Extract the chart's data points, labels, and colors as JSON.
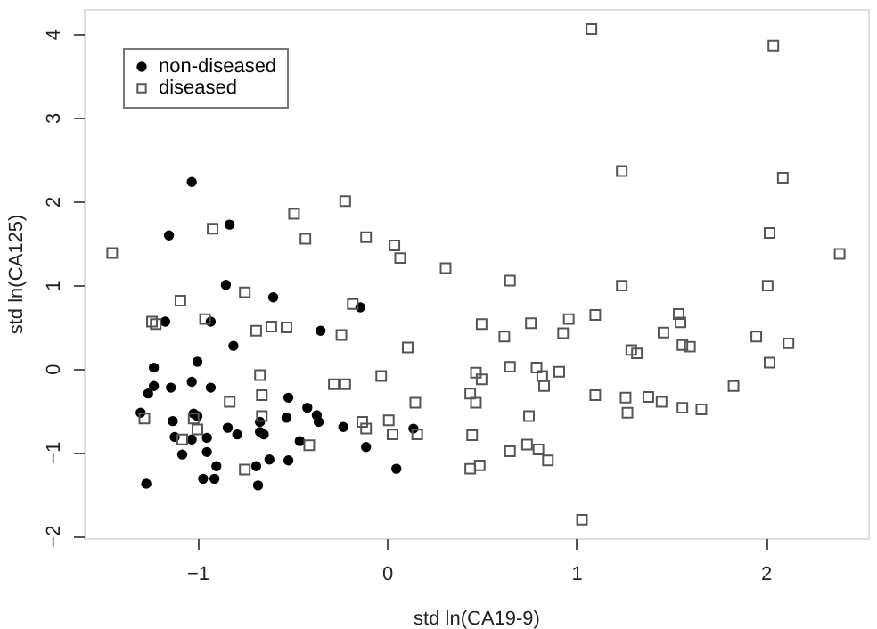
{
  "chart_data": {
    "type": "scatter",
    "xlabel": "std ln(CA19-9)",
    "ylabel": "std ln(CA125)",
    "xlim": [
      -1.6,
      2.54
    ],
    "ylim": [
      -2.03,
      4.3
    ],
    "xticks": [
      -1,
      0,
      1,
      2
    ],
    "yticks": [
      -2,
      -1,
      0,
      1,
      2,
      3,
      4
    ],
    "grid": false,
    "legend": "top left",
    "series": [
      {
        "name": "non-diseased",
        "color": "#000000",
        "marker": "circle",
        "x": [
          -1.03,
          -0.83,
          -1.15,
          -0.85,
          -0.6,
          -0.14,
          -1.17,
          -0.93,
          -0.35,
          -0.81,
          -1.23,
          -1.0,
          -1.23,
          -1.26,
          -1.14,
          -1.03,
          -0.93,
          -0.52,
          -0.42,
          -1.3,
          -1.02,
          -1.0,
          -1.13,
          -0.37,
          -0.36,
          -0.53,
          -0.67,
          -0.84,
          -0.79,
          -0.67,
          -0.65,
          -0.23,
          -1.12,
          -1.03,
          -0.95,
          -0.46,
          -0.11,
          -1.08,
          -0.95,
          -0.62,
          -0.52,
          -0.9,
          -0.69,
          -0.97,
          -0.91,
          -1.27,
          -0.68,
          0.14,
          0.05
        ],
        "values": [
          2.23,
          1.72,
          1.59,
          1.0,
          0.85,
          0.73,
          0.56,
          0.56,
          0.45,
          0.27,
          0.01,
          0.08,
          -0.21,
          -0.3,
          -0.23,
          -0.16,
          -0.23,
          -0.35,
          -0.47,
          -0.53,
          -0.54,
          -0.57,
          -0.63,
          -0.56,
          -0.64,
          -0.59,
          -0.64,
          -0.71,
          -0.79,
          -0.76,
          -0.79,
          -0.7,
          -0.82,
          -0.85,
          -0.83,
          -0.87,
          -0.94,
          -1.03,
          -1.0,
          -1.09,
          -1.1,
          -1.17,
          -1.17,
          -1.32,
          -1.32,
          -1.38,
          -1.4,
          -0.72,
          -1.2
        ]
      },
      {
        "name": "diseased",
        "color": "#555555",
        "marker": "square",
        "x": [
          -0.22,
          -0.49,
          -0.92,
          -0.43,
          -0.11,
          -1.45,
          -0.75,
          -1.09,
          -0.18,
          -1.24,
          -1.22,
          -0.96,
          -0.69,
          -0.61,
          -0.53,
          -0.24,
          -0.67,
          -0.28,
          -0.22,
          -0.83,
          -0.66,
          -0.66,
          -1.28,
          -1.02,
          -1.0,
          -1.08,
          -0.13,
          -0.11,
          -0.41,
          -0.75,
          0.04,
          0.07,
          0.31,
          0.65,
          0.5,
          0.76,
          0.96,
          1.1,
          0.62,
          0.93,
          0.11,
          -0.03,
          0.47,
          0.5,
          0.65,
          0.79,
          0.82,
          0.83,
          0.91,
          1.1,
          0.44,
          0.47,
          0.15,
          0.01,
          0.03,
          0.16,
          0.45,
          0.75,
          0.65,
          0.74,
          0.8,
          0.85,
          0.49,
          0.44,
          1.08,
          2.04,
          1.24,
          2.09,
          2.02,
          2.39,
          1.24,
          2.01,
          1.54,
          1.55,
          1.46,
          1.95,
          2.12,
          1.56,
          1.6,
          1.29,
          1.32,
          2.02,
          1.83,
          1.26,
          1.38,
          1.45,
          1.27,
          1.56,
          1.66,
          1.03
        ],
        "values": [
          2.0,
          1.85,
          1.67,
          1.55,
          1.57,
          1.38,
          0.91,
          0.81,
          0.77,
          0.56,
          0.53,
          0.59,
          0.45,
          0.5,
          0.49,
          0.4,
          -0.08,
          -0.19,
          -0.19,
          -0.4,
          -0.32,
          -0.57,
          -0.6,
          -0.6,
          -0.73,
          -0.85,
          -0.64,
          -0.72,
          -0.92,
          -1.21,
          1.47,
          1.32,
          1.2,
          1.05,
          0.53,
          0.54,
          0.59,
          0.64,
          0.38,
          0.42,
          0.25,
          -0.09,
          -0.05,
          -0.13,
          0.02,
          0.01,
          -0.09,
          -0.21,
          -0.04,
          -0.32,
          -0.3,
          -0.41,
          -0.41,
          -0.62,
          -0.79,
          -0.79,
          -0.8,
          -0.57,
          -0.99,
          -0.91,
          -0.97,
          -1.1,
          -1.16,
          -1.2,
          4.06,
          3.86,
          2.36,
          2.28,
          1.62,
          1.37,
          0.99,
          0.99,
          0.65,
          0.55,
          0.43,
          0.38,
          0.3,
          0.28,
          0.26,
          0.22,
          0.18,
          0.07,
          -0.21,
          -0.35,
          -0.34,
          -0.4,
          -0.53,
          -0.47,
          -0.49,
          -1.81
        ]
      }
    ]
  }
}
